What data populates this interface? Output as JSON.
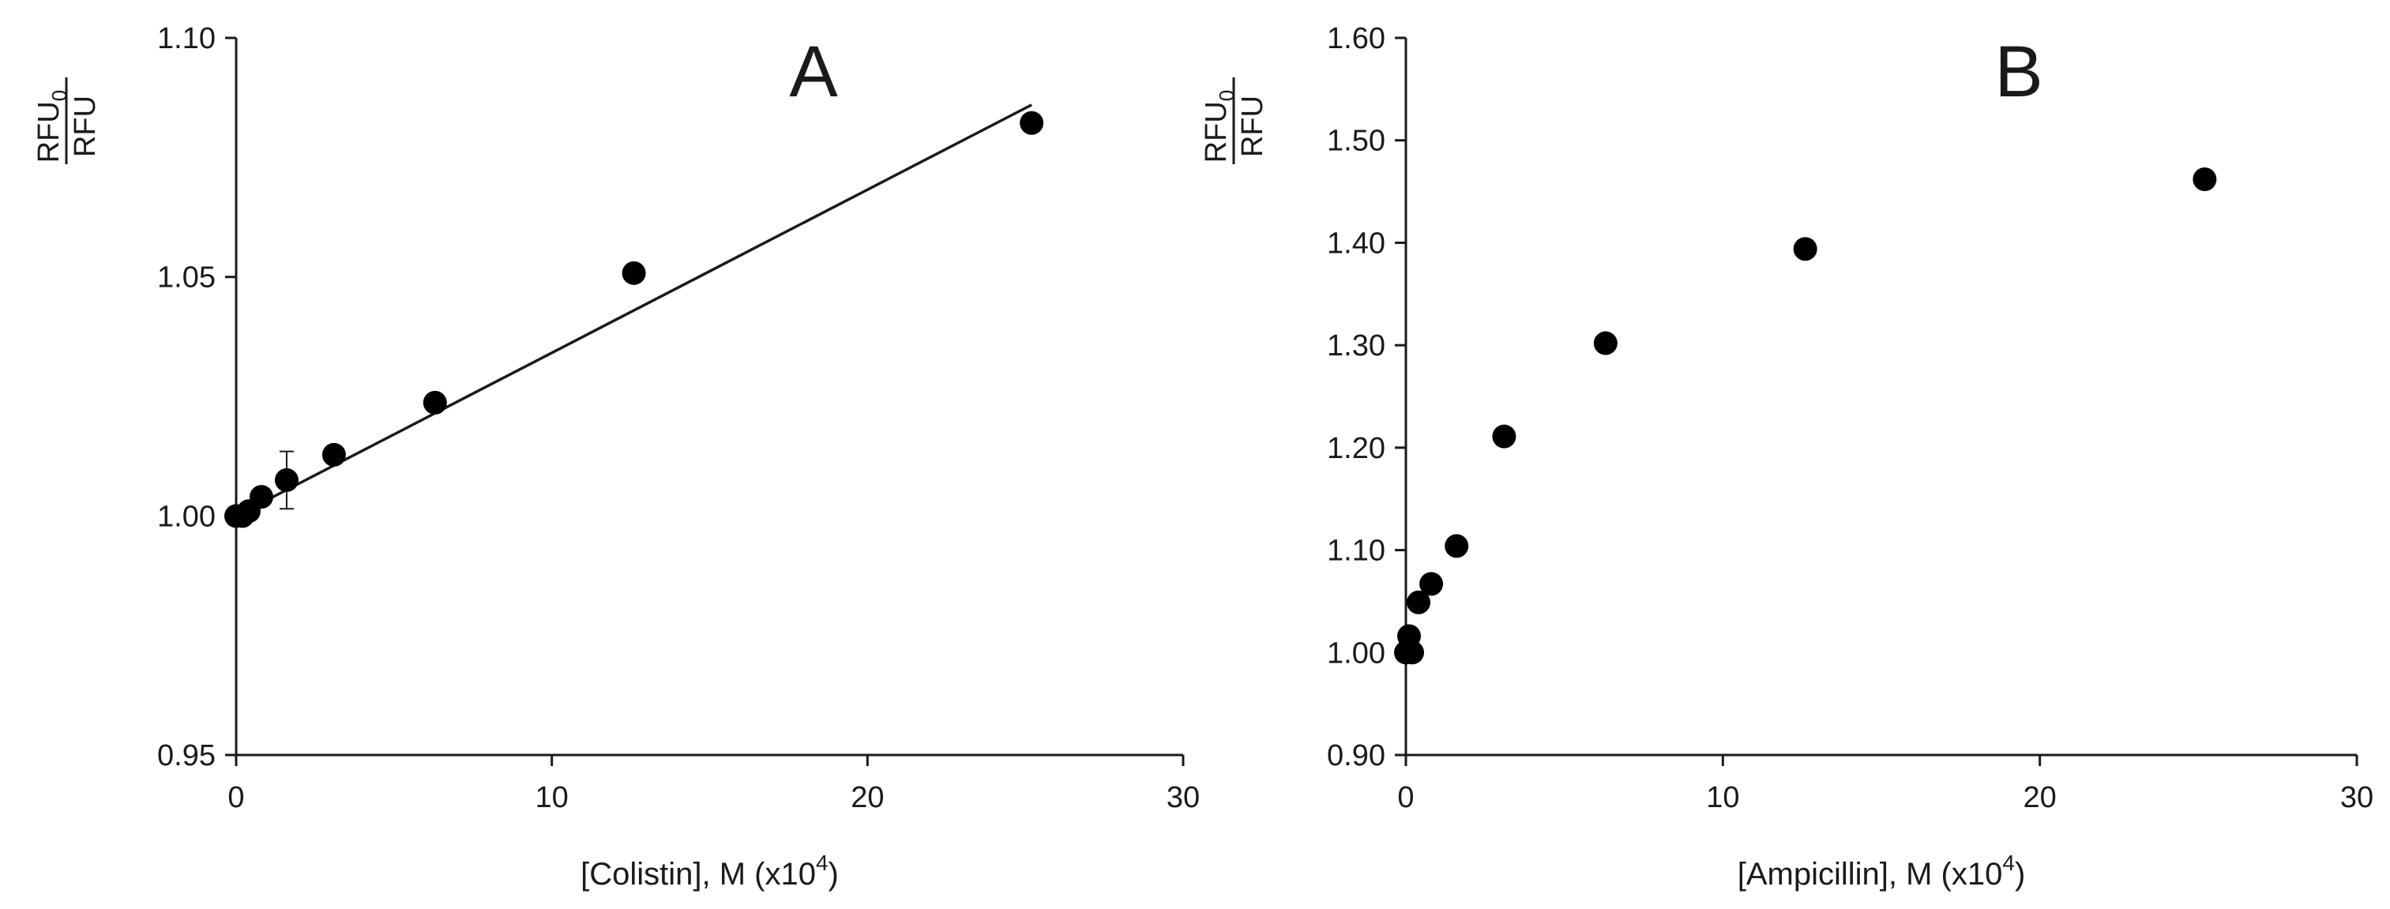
{
  "chart_data": [
    {
      "type": "scatter",
      "panel": "A",
      "xlabel": "[Colistin], M (x10",
      "xlabel_sup": "4",
      "xlabel_end": ")",
      "ylabel_num": "RFU",
      "ylabel_num_sub": "0",
      "ylabel_den": "RFU",
      "xlim": [
        0,
        30
      ],
      "ylim": [
        0.95,
        1.1
      ],
      "xticks": [
        0,
        10,
        20,
        30
      ],
      "xtick_labels": [
        "0",
        "10",
        "20",
        "30"
      ],
      "yticks": [
        0.95,
        1.0,
        1.05,
        1.1
      ],
      "ytick_labels": [
        "0.95",
        "1.00",
        "1.05",
        "1.10"
      ],
      "series": [
        {
          "x": [
            0,
            0.2,
            0.4,
            0.8,
            1.6,
            3.1,
            6.3,
            12.6,
            25.2
          ],
          "y": [
            1.0,
            1.0,
            1.001,
            1.004,
            1.0075,
            1.0128,
            1.0237,
            1.0508,
            1.0822
          ],
          "yerr": [
            0,
            0,
            0,
            0,
            0.006,
            0,
            0,
            0,
            0
          ]
        }
      ],
      "trendline": {
        "x": [
          0,
          25.2
        ],
        "y": [
          1.0,
          1.086
        ]
      },
      "grid": false
    },
    {
      "type": "scatter",
      "panel": "B",
      "xlabel": "[Ampicillin], M (x10",
      "xlabel_sup": "4",
      "xlabel_end": ")",
      "ylabel_num": "RFU",
      "ylabel_num_sub": "0",
      "ylabel_den": "RFU",
      "xlim": [
        0,
        30
      ],
      "ylim": [
        0.9,
        1.6
      ],
      "xticks": [
        0,
        10,
        20,
        30
      ],
      "xtick_labels": [
        "0",
        "10",
        "20",
        "30"
      ],
      "yticks": [
        0.9,
        1.0,
        1.1,
        1.2,
        1.3,
        1.4,
        1.5,
        1.6
      ],
      "ytick_labels": [
        "0.90",
        "1.00",
        "1.10",
        "1.20",
        "1.30",
        "1.40",
        "1.50",
        "1.60"
      ],
      "series": [
        {
          "x": [
            0,
            0.1,
            0.2,
            0.4,
            0.8,
            1.6,
            3.1,
            6.3,
            12.6,
            25.2
          ],
          "y": [
            1.0,
            1.016,
            1.0,
            1.049,
            1.067,
            1.104,
            1.211,
            1.302,
            1.394,
            1.462
          ]
        }
      ],
      "grid": false
    }
  ]
}
